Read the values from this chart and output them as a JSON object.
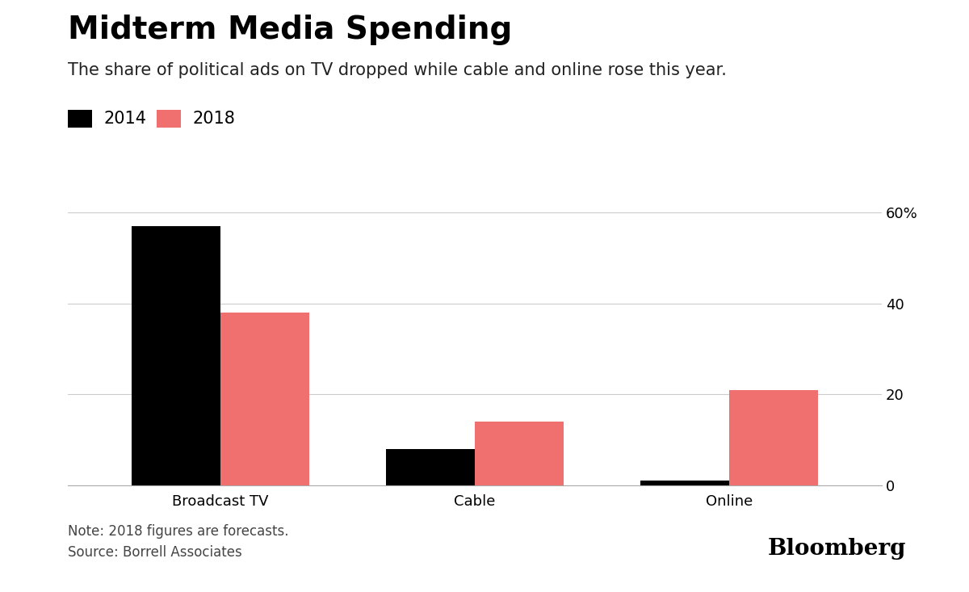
{
  "title": "Midterm Media Spending",
  "subtitle": "The share of political ads on TV dropped while cable and online rose this year.",
  "categories": [
    "Broadcast TV",
    "Cable",
    "Online"
  ],
  "values_2014": [
    57,
    8,
    1
  ],
  "values_2018": [
    38,
    14,
    21
  ],
  "color_2014": "#000000",
  "color_2018": "#F07070",
  "ylim": [
    0,
    65
  ],
  "yticks": [
    0,
    20,
    40,
    60
  ],
  "ytick_labels": [
    "0",
    "20",
    "40",
    "60%"
  ],
  "legend_labels": [
    "2014",
    "2018"
  ],
  "note": "Note: 2018 figures are forecasts.\nSource: Borrell Associates",
  "bloomberg_label": "Bloomberg",
  "background_color": "#ffffff",
  "bar_width": 0.35,
  "title_fontsize": 28,
  "subtitle_fontsize": 15,
  "tick_fontsize": 13,
  "legend_fontsize": 15,
  "note_fontsize": 12,
  "bloomberg_fontsize": 20
}
